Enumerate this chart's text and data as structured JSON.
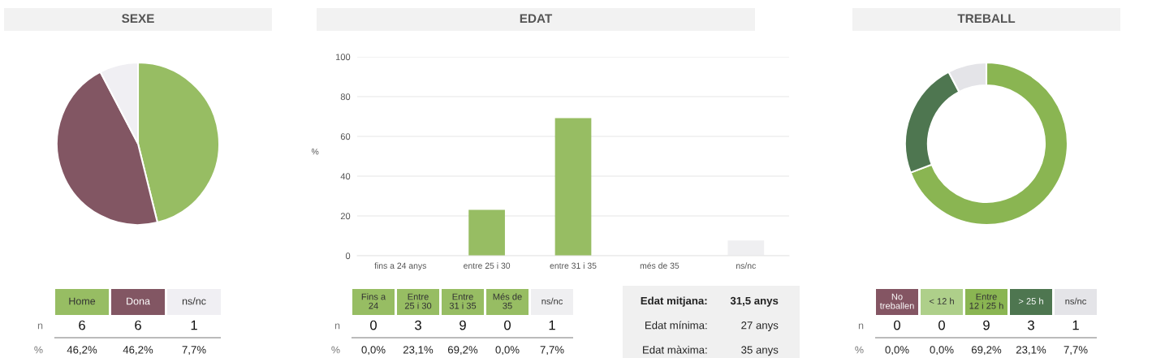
{
  "chart_data": [
    {
      "type": "pie",
      "title": "SEXE",
      "categories": [
        null,
        null,
        null
      ],
      "values": [
        46.2,
        46.2,
        7.7
      ],
      "colors": [
        "#97bd63",
        "#825663",
        "#f0eff3"
      ]
    },
    {
      "type": "other",
      "annotations": [
        "Home",
        "Dona",
        "ns/nc",
        "n",
        "6",
        "6",
        "1",
        "%",
        "46,2%",
        "46,2%",
        "7,7%"
      ]
    },
    {
      "type": "bar",
      "title": "EDAT",
      "ylabel": "%",
      "categories": [
        "fins a 24 anys",
        "entre 25 i 30",
        "entre 31 i 35",
        "més de 35",
        "ns/nc"
      ],
      "values": [
        0,
        23.1,
        69.2,
        0,
        7.7
      ],
      "colors": [
        "#97bd63",
        "#97bd63",
        "#97bd63",
        "#97bd63",
        "#efeff1"
      ],
      "ylim": [
        0,
        100
      ],
      "yticks": [
        0,
        20,
        40,
        60,
        80,
        100
      ],
      "grid": "y"
    },
    {
      "type": "other",
      "annotations": [
        "Fins a\n24",
        "Entre\n25 i 30",
        "Entre\n31 i 35",
        "Més de\n35",
        "ns/nc",
        "n",
        "0",
        "3",
        "9",
        "0",
        "1",
        "%",
        "0,0%",
        "23,1%",
        "69,2%",
        "0,0%",
        "7,7%"
      ]
    },
    {
      "type": "other",
      "annotations": [
        "Edat mitjana:",
        "31,5 anys",
        "Edat mínima:",
        "27 anys",
        "Edat màxima:",
        "35 anys"
      ]
    },
    {
      "type": "donut",
      "title": "TREBALL",
      "categories": [
        null,
        null,
        null,
        null,
        null
      ],
      "values": [
        0,
        0,
        69.2,
        23.1,
        7.7
      ],
      "colors": [
        "#845563",
        "#aecf8a",
        "#8ab552",
        "#4e7650",
        "#e4e4e8"
      ]
    },
    {
      "type": "other",
      "annotations": [
        "No\ntreballen",
        "< 12 h",
        "Entre\n12 i 25 h",
        "> 25 h",
        "ns/nc",
        "n",
        "0",
        "0",
        "9",
        "3",
        "1",
        "%",
        "0,0%",
        "0,0%",
        "69,2%",
        "23,1%",
        "7,7%"
      ]
    }
  ]
}
